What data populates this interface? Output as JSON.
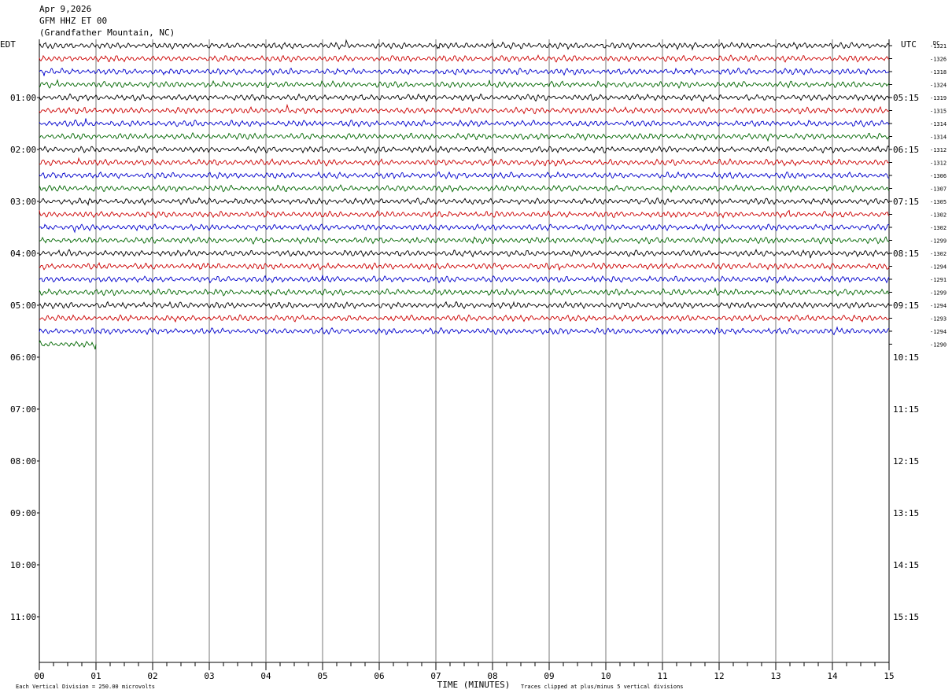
{
  "header": {
    "date": "Apr 9,2026",
    "station": "GFM HHZ ET 00",
    "location": "(Grandfather Mountain, NC)"
  },
  "left_tz": "EDT",
  "right_tz": "UTC",
  "dc_label": "DC",
  "footer": {
    "scale_note": "Each Vertical Division =  250.00 microvolts",
    "clip_note": "Traces clipped at plus/minus 5 vertical divisions"
  },
  "chart_data": {
    "type": "line",
    "title": "",
    "xlabel": "TIME (MINUTES)",
    "ylabel": "",
    "xlim": [
      0,
      15
    ],
    "x_ticks": [
      "00",
      "01",
      "02",
      "03",
      "04",
      "05",
      "06",
      "07",
      "08",
      "09",
      "10",
      "11",
      "12",
      "13",
      "14",
      "15"
    ],
    "left_time_labels": [
      "01:00",
      "02:00",
      "03:00",
      "04:00",
      "05:00",
      "06:00",
      "07:00",
      "08:00",
      "09:00",
      "10:00",
      "11:00"
    ],
    "right_time_labels": [
      "05:15",
      "06:15",
      "07:15",
      "08:15",
      "09:15",
      "10:15",
      "11:15",
      "12:15",
      "13:15",
      "14:15",
      "15:15"
    ],
    "trace_colors": [
      "#000000",
      "#cc0000",
      "#0000cc",
      "#006600"
    ],
    "trace_minutes": 15,
    "last_trace_minutes": 1,
    "dc_offsets": [
      "-1321",
      "-1326",
      "-1318",
      "-1324",
      "-1319",
      "-1315",
      "-1314",
      "-1314",
      "-1312",
      "-1312",
      "-1306",
      "-1307",
      "-1305",
      "-1302",
      "-1302",
      "-1299",
      "-1302",
      "-1294",
      "-1291",
      "-1299",
      "-1294",
      "-1293",
      "-1294",
      "-1290"
    ],
    "grid": true
  }
}
